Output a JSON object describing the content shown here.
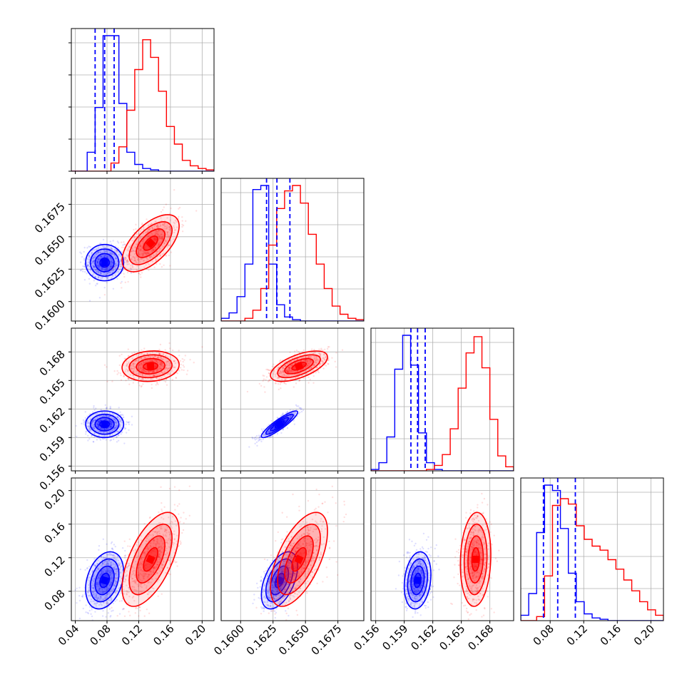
{
  "chart_data": {
    "type": "corner",
    "n_params": 4,
    "colors": {
      "blue": "#0000ff",
      "red": "#ff0000",
      "grid": "#b0b0b0"
    },
    "grid": true,
    "quantile_lines_series": "blue",
    "axis_ranges": [
      [
        0.035,
        0.215
      ],
      [
        0.1585,
        0.1695
      ],
      [
        0.1555,
        0.1705
      ],
      [
        0.045,
        0.215
      ]
    ],
    "ticks": [
      {
        "values": [
          0.04,
          0.08,
          0.12,
          0.16,
          0.2
        ],
        "labels": [
          "0.04",
          "0.08",
          "0.12",
          "0.16",
          "0.20"
        ]
      },
      {
        "values": [
          0.16,
          0.1625,
          0.165,
          0.1675
        ],
        "labels": [
          "0.1600",
          "0.1625",
          "0.1650",
          "0.1675"
        ]
      },
      {
        "values": [
          0.156,
          0.159,
          0.162,
          0.165,
          0.168
        ],
        "labels": [
          "0.156",
          "0.159",
          "0.162",
          "0.165",
          "0.168"
        ]
      },
      {
        "values": [
          0.08,
          0.12,
          0.16,
          0.2
        ],
        "labels": [
          "0.08",
          "0.12",
          "0.16",
          "0.20"
        ]
      }
    ],
    "series": [
      {
        "color": "blue",
        "mean": [
          0.077,
          0.163,
          0.1604,
          0.093
        ],
        "sd": [
          0.012,
          0.0007,
          0.0007,
          0.017
        ],
        "quantiles": [
          [
            0.065,
            0.077,
            0.089
          ],
          [
            0.162,
            0.1628,
            0.1638
          ],
          [
            0.1597,
            0.1604,
            0.1612
          ],
          [
            0.072,
            0.089,
            0.11
          ]
        ],
        "corr": [
          [
            1,
            0.0,
            0.0,
            0.3
          ],
          [
            0.0,
            1,
            0.9,
            0.5
          ],
          [
            0.0,
            0.9,
            1,
            0.2
          ],
          [
            0.3,
            0.5,
            0.2,
            1
          ]
        ]
      },
      {
        "color": "red",
        "mean": [
          0.135,
          0.1645,
          0.1665,
          0.118
        ],
        "sd": [
          0.018,
          0.0011,
          0.0008,
          0.028
        ],
        "quantiles": [],
        "corr": [
          [
            1,
            0.6,
            0.1,
            0.6
          ],
          [
            0.6,
            1,
            0.6,
            0.6
          ],
          [
            0.1,
            0.6,
            1,
            0.1
          ],
          [
            0.6,
            0.6,
            0.1,
            1
          ]
        ]
      }
    ],
    "diag_hist": [
      {
        "edges": [
          0.035,
          0.215
        ],
        "blue": [
          0,
          0,
          0.14,
          0.47,
          1.0,
          1.0,
          0.5,
          0.14,
          0.05,
          0.02,
          0.01,
          0,
          0,
          0,
          0,
          0,
          0,
          0
        ],
        "red": [
          0,
          0,
          0,
          0,
          0,
          0.06,
          0.18,
          0.45,
          0.75,
          0.97,
          0.84,
          0.59,
          0.33,
          0.2,
          0.08,
          0.04,
          0.02,
          0.01
        ]
      },
      {
        "edges": [
          0.1585,
          0.1695
        ],
        "blue": [
          0.02,
          0.06,
          0.18,
          0.42,
          0.97,
          1.0,
          0.42,
          0.12,
          0.03,
          0.01,
          0,
          0,
          0,
          0,
          0,
          0,
          0,
          0
        ],
        "red": [
          0,
          0,
          0,
          0.02,
          0.08,
          0.24,
          0.56,
          0.83,
          0.96,
          1.0,
          0.87,
          0.64,
          0.42,
          0.24,
          0.11,
          0.05,
          0.02,
          0.01
        ]
      },
      {
        "edges": [
          0.1555,
          0.1705
        ],
        "blue": [
          0.01,
          0.06,
          0.25,
          0.75,
          1.0,
          0.78,
          0.28,
          0.06,
          0.01,
          0,
          0,
          0,
          0,
          0,
          0,
          0,
          0,
          0
        ],
        "red": [
          0,
          0,
          0,
          0,
          0,
          0,
          0,
          0.01,
          0.04,
          0.12,
          0.31,
          0.61,
          0.87,
          0.99,
          0.76,
          0.38,
          0.11,
          0.03
        ]
      },
      {
        "edges": [
          0.045,
          0.215
        ],
        "blue": [
          0.04,
          0.2,
          0.65,
          1.0,
          0.96,
          0.68,
          0.35,
          0.14,
          0.05,
          0.02,
          0.01,
          0,
          0,
          0,
          0,
          0,
          0,
          0
        ],
        "red": [
          0,
          0,
          0.03,
          0.33,
          0.85,
          0.9,
          0.86,
          0.7,
          0.6,
          0.55,
          0.52,
          0.45,
          0.38,
          0.3,
          0.22,
          0.14,
          0.08,
          0.04
        ]
      }
    ]
  }
}
